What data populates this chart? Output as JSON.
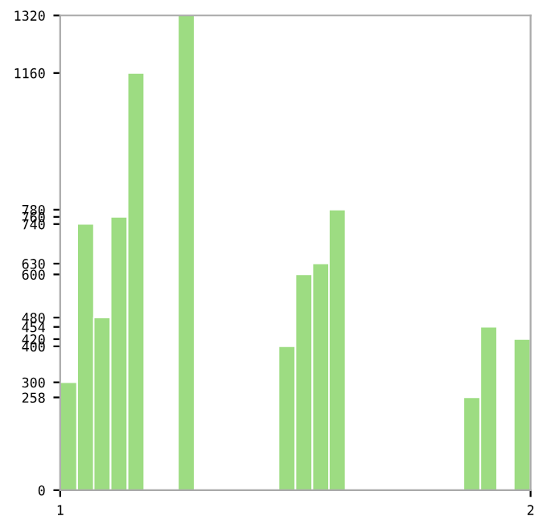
{
  "chart_data": {
    "type": "bar",
    "x": [
      1.018,
      1.054,
      1.089,
      1.125,
      1.161,
      1.196,
      1.232,
      1.268,
      1.304,
      1.339,
      1.375,
      1.411,
      1.446,
      1.482,
      1.518,
      1.554,
      1.589,
      1.625,
      1.661,
      1.696,
      1.732,
      1.768,
      1.804,
      1.839,
      1.875,
      1.911,
      1.946,
      1.982
    ],
    "values": [
      300,
      740,
      480,
      760,
      1160,
      0,
      0,
      1320,
      0,
      0,
      0,
      0,
      0,
      400,
      600,
      630,
      780,
      0,
      0,
      0,
      0,
      0,
      0,
      0,
      258,
      454,
      0,
      420
    ],
    "color": "#9ddc82",
    "xlim": [
      1,
      2
    ],
    "xticks": [
      1,
      2
    ],
    "ylim": [
      0,
      1320
    ],
    "yticks": [
      0,
      258,
      300,
      400,
      420,
      454,
      480,
      600,
      630,
      740,
      760,
      780,
      1160,
      1320
    ],
    "grid": false
  }
}
